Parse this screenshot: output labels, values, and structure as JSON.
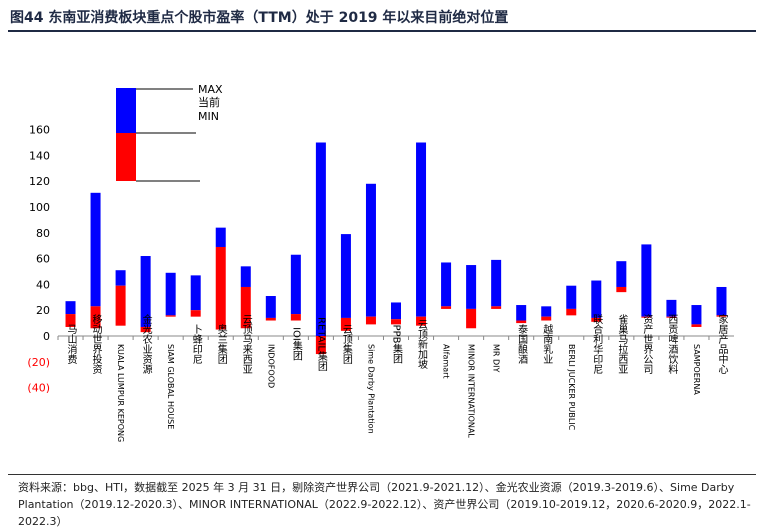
{
  "title": "图44 东南亚消费板块重点个股市盈率（TTM）处于 2019 年以来目前绝对位置",
  "source": "资料来源：bbg、HTI，数据截至 2025 年 3 月 31 日，剔除资产世界公司（2021.9-2021.12）、金光农业资源（2019.3-2019.6）、Sime Darby Plantation（2019.12-2020.3）、MINOR INTERNATIONAL（2022.9-2022.12）、资产世界公司（2019.10-2019.12，2020.6-2020.9，2022.1-2022.3）",
  "colors": {
    "range": "#0000ff",
    "current": "#ff0000",
    "axis": "#888888"
  },
  "chart_data": {
    "type": "bar",
    "subtype": "floating-range",
    "ylim": [
      -40,
      160
    ],
    "yticks": [
      -40,
      -20,
      0,
      20,
      40,
      60,
      80,
      100,
      120,
      140,
      160
    ],
    "ytick_labels": [
      "(40)",
      "(20)",
      "0",
      "20",
      "40",
      "60",
      "80",
      "100",
      "120",
      "140",
      "160"
    ],
    "legend": {
      "max": "MAX",
      "current": "当前",
      "min": "MIN"
    },
    "categories": [
      "马山消费",
      "移动世界投资",
      "KUALA LUMPUR KEPONG",
      "金光农业资源",
      "SIAM GLOBAL HOUSE",
      "卜蜂印尼",
      "奥兰集团",
      "云顶马来西亚",
      "INDOFOOD",
      "IOI集团",
      "RETAIL集团",
      "云顶集团",
      "Sime Darby Plantation",
      "PPB集团",
      "云顶新加坡",
      "Alfamart",
      "MINOR INTERNATIONAL",
      "MR DIY",
      "泰国酿酒",
      "越南乳业",
      "BERLI JUCKER PUBLIC",
      "联合利华印尼",
      "雀巢马拉西亚",
      "资产世界公司",
      "西贡啤酒饮料",
      "SAMPOERNA",
      "家居产品中心"
    ],
    "series": [
      {
        "name": "MIN",
        "values": [
          7,
          6,
          8,
          3,
          15,
          15,
          5,
          6,
          12,
          12,
          -14,
          4,
          9,
          9,
          8,
          21,
          6,
          21,
          10,
          12,
          16,
          11,
          34,
          15,
          15,
          7,
          15
        ]
      },
      {
        "name": "当前",
        "values": [
          17,
          23,
          39,
          7,
          16,
          20,
          69,
          38,
          14,
          17,
          0,
          14,
          15,
          13,
          15,
          23,
          21,
          23,
          12,
          15,
          21,
          14,
          38,
          15,
          15,
          9,
          16
        ]
      },
      {
        "name": "MAX",
        "values": [
          27,
          111,
          51,
          62,
          49,
          47,
          84,
          54,
          31,
          63,
          150,
          79,
          118,
          26,
          150,
          57,
          55,
          59,
          24,
          23,
          39,
          43,
          58,
          71,
          28,
          24,
          38
        ]
      }
    ]
  }
}
